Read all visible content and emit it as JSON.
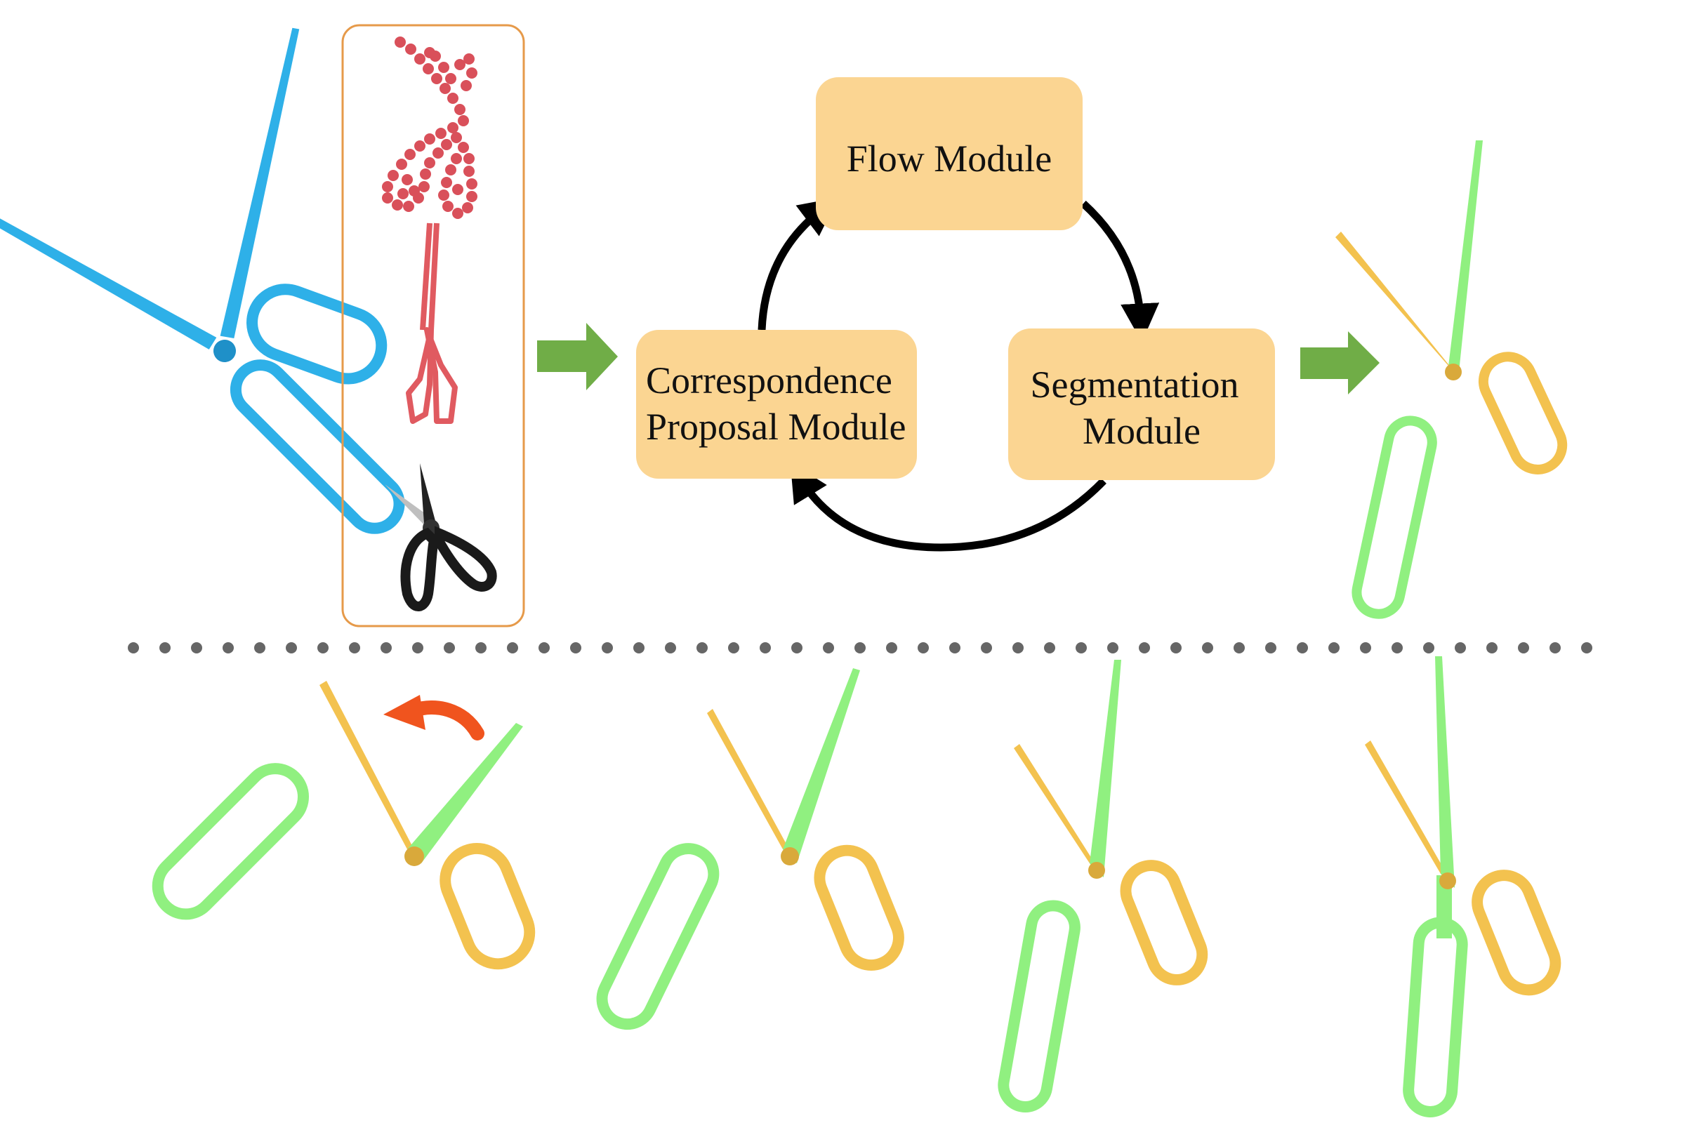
{
  "modules": {
    "flow": {
      "label": "Flow Module"
    },
    "correspondence": {
      "line1": "Correspondence",
      "line2": "Proposal Module"
    },
    "segmentation": {
      "line1": "Segmentation",
      "line2": "Module"
    }
  },
  "colors": {
    "module_fill": "#fbd592",
    "cycle_arrow": "#000000",
    "flow_arrow": "#70ad47",
    "input_scissors": "#2eb0e8",
    "part_static": "#90f080",
    "part_moving": "#f3c24f",
    "rotation_arrow": "#f0541e",
    "reference_box_border": "#e69a4a",
    "point_cloud": "#d9505a",
    "separator_dots": "#666666"
  },
  "icons": [
    "input-scissors-mesh",
    "reference-point-cloud",
    "reference-scissors-mesh",
    "reference-scissors-photo",
    "segmented-scissors-output",
    "rotation-arrow-icon"
  ]
}
